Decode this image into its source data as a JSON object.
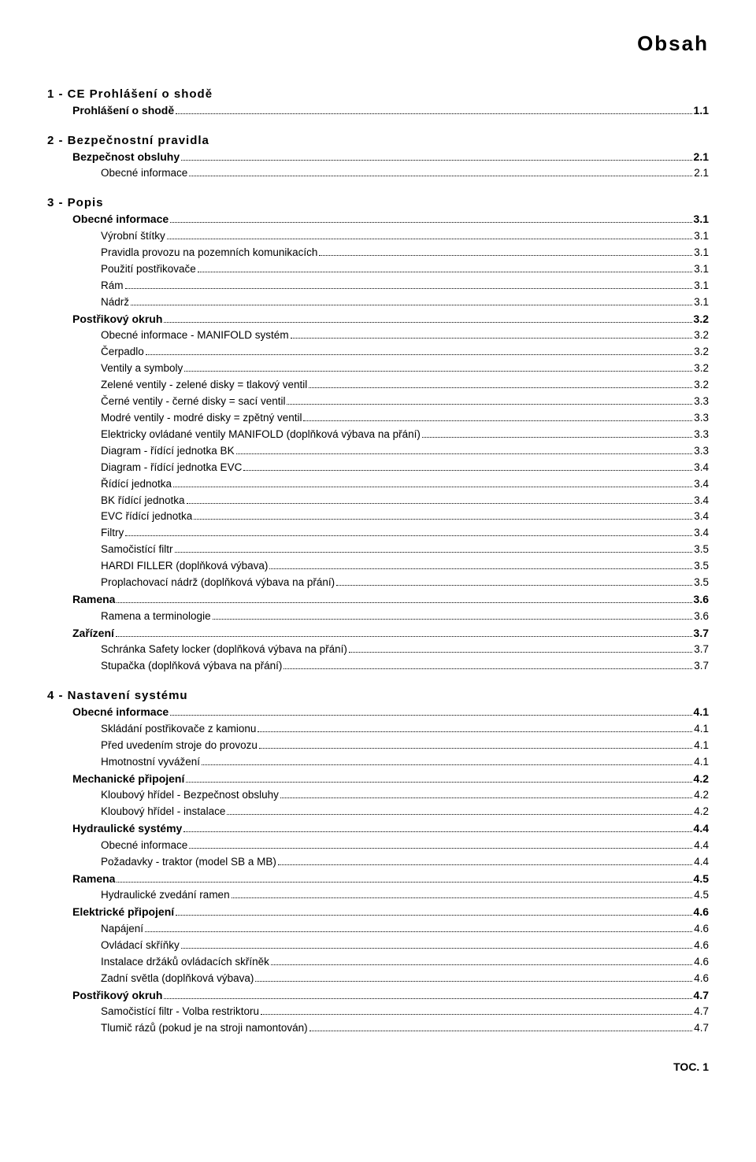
{
  "page_title": "Obsah",
  "footer": "TOC. 1",
  "chapters": [
    {
      "title": "1 - CE Prohlášení o shodě",
      "sections": [
        {
          "label": "Prohlášení o shodě",
          "page": "1.1",
          "items": []
        }
      ]
    },
    {
      "title": "2 - Bezpečnostní pravidla",
      "sections": [
        {
          "label": "Bezpečnost obsluhy",
          "page": "2.1",
          "items": [
            {
              "label": "Obecné informace",
              "page": "2.1"
            }
          ]
        }
      ]
    },
    {
      "title": "3 - Popis",
      "sections": [
        {
          "label": "Obecné informace",
          "page": "3.1",
          "items": [
            {
              "label": "Výrobní štítky",
              "page": "3.1"
            },
            {
              "label": "Pravidla provozu na pozemních komunikacích",
              "page": "3.1"
            },
            {
              "label": "Použití postřikovače",
              "page": "3.1"
            },
            {
              "label": "Rám",
              "page": "3.1"
            },
            {
              "label": "Nádrž",
              "page": "3.1"
            }
          ]
        },
        {
          "label": "Postřikový okruh",
          "page": "3.2",
          "items": [
            {
              "label": "Obecné informace - MANIFOLD systém",
              "page": "3.2"
            },
            {
              "label": "Čerpadlo",
              "page": "3.2"
            },
            {
              "label": "Ventily a symboly",
              "page": "3.2"
            },
            {
              "label": "Zelené ventily - zelené disky = tlakový ventil",
              "page": "3.2"
            },
            {
              "label": "Černé ventily - černé disky = sací ventil",
              "page": "3.3"
            },
            {
              "label": "Modré ventily - modré disky = zpětný ventil",
              "page": "3.3"
            },
            {
              "label": "Elektricky ovládané ventily MANIFOLD (doplňková výbava na přání)",
              "page": "3.3"
            },
            {
              "label": "Diagram - řídící jednotka BK",
              "page": "3.3"
            },
            {
              "label": "Diagram - řídící jednotka EVC",
              "page": "3.4"
            },
            {
              "label": "Řídící jednotka",
              "page": "3.4"
            },
            {
              "label": "BK řídící jednotka",
              "page": "3.4"
            },
            {
              "label": "EVC řídící jednotka",
              "page": "3.4"
            },
            {
              "label": "Filtry",
              "page": "3.4"
            },
            {
              "label": "Samočistící filtr",
              "page": "3.5"
            },
            {
              "label": "HARDI FILLER (doplňková výbava)",
              "page": "3.5"
            },
            {
              "label": "Proplachovací nádrž (doplňková výbava na přání)",
              "page": "3.5"
            }
          ]
        },
        {
          "label": "Ramena",
          "page": "3.6",
          "items": [
            {
              "label": "Ramena a terminologie",
              "page": "3.6"
            }
          ]
        },
        {
          "label": "Zařízení",
          "page": "3.7",
          "items": [
            {
              "label": "Schránka Safety locker (doplňková výbava na přání)",
              "page": "3.7"
            },
            {
              "label": "Stupačka (doplňková výbava na přání)",
              "page": "3.7"
            }
          ]
        }
      ]
    },
    {
      "title": "4 - Nastavení systému",
      "sections": [
        {
          "label": "Obecné informace",
          "page": "4.1",
          "items": [
            {
              "label": "Skládání postřikovače z kamionu",
              "page": "4.1"
            },
            {
              "label": "Před uvedením stroje do  provozu",
              "page": "4.1"
            },
            {
              "label": "Hmotnostní vyvážení",
              "page": "4.1"
            }
          ]
        },
        {
          "label": "Mechanické připojení",
          "page": "4.2",
          "items": [
            {
              "label": "Kloubový hřídel - Bezpečnost obsluhy",
              "page": "4.2"
            },
            {
              "label": "Kloubový hřídel - instalace",
              "page": "4.2"
            }
          ]
        },
        {
          "label": "Hydraulické systémy",
          "page": "4.4",
          "items": [
            {
              "label": "Obecné informace",
              "page": "4.4"
            },
            {
              "label": "Požadavky - traktor (model SB a MB)",
              "page": "4.4"
            }
          ]
        },
        {
          "label": "Ramena",
          "page": "4.5",
          "items": [
            {
              "label": "Hydraulické zvedání ramen",
              "page": "4.5"
            }
          ]
        },
        {
          "label": "Elektrické připojení",
          "page": "4.6",
          "items": [
            {
              "label": "Napájení",
              "page": "4.6"
            },
            {
              "label": "Ovládací skříňky",
              "page": "4.6"
            },
            {
              "label": "Instalace držáků ovládacích skříněk",
              "page": "4.6"
            },
            {
              "label": "Zadní světla (doplňková výbava)",
              "page": "4.6"
            }
          ]
        },
        {
          "label": "Postřikový okruh",
          "page": "4.7",
          "items": [
            {
              "label": "Samočistící filtr - Volba restriktoru",
              "page": "4.7"
            },
            {
              "label": "Tlumič rázů (pokud je na stroji namontován)",
              "page": "4.7"
            }
          ]
        }
      ]
    }
  ]
}
